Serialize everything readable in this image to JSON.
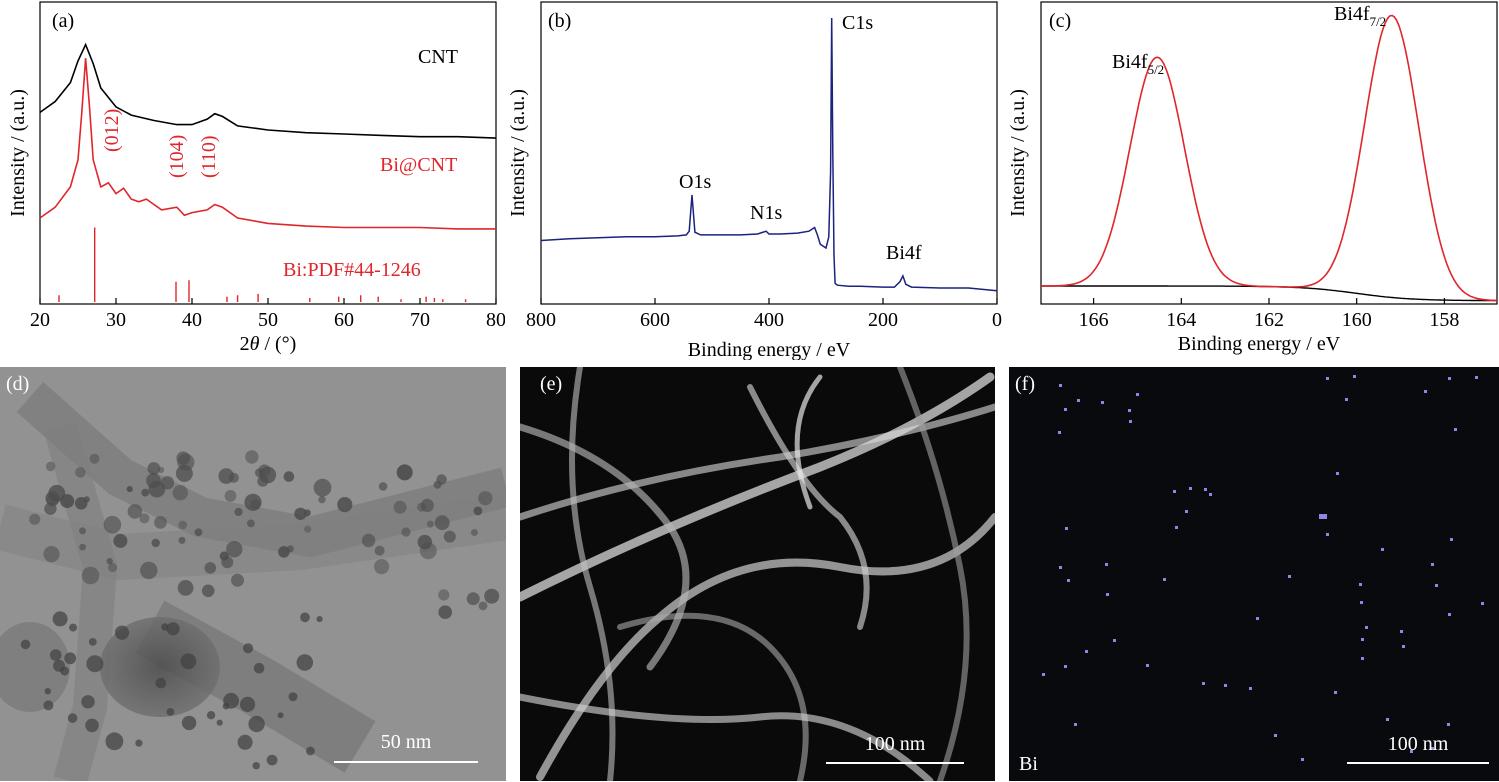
{
  "chart_data": [
    {
      "type": "line",
      "panel": "(a)",
      "xlabel_pre": "2",
      "xlabel_theta": "θ",
      "xlabel_post": " / (°)",
      "ylabel": "Intensity / (a.u.)",
      "xlim": [
        20,
        80
      ],
      "xticks": [
        "20",
        "30",
        "40",
        "50",
        "60",
        "70",
        "80"
      ],
      "series": [
        {
          "name": "CNT",
          "color": "#000000",
          "x": [
            20,
            22,
            24,
            25,
            26,
            27,
            28,
            30,
            32,
            35,
            38,
            40,
            42,
            43,
            44,
            46,
            50,
            55,
            60,
            65,
            70,
            75,
            80
          ],
          "y": [
            1.4,
            1.48,
            1.62,
            1.78,
            1.9,
            1.76,
            1.58,
            1.44,
            1.38,
            1.34,
            1.31,
            1.31,
            1.35,
            1.39,
            1.37,
            1.3,
            1.27,
            1.25,
            1.24,
            1.23,
            1.22,
            1.22,
            1.21
          ]
        },
        {
          "name": "Bi@CNT",
          "color": "#e0262b",
          "x": [
            20,
            22,
            24,
            25,
            25.5,
            26,
            26.5,
            27,
            28,
            29,
            30,
            31,
            32,
            33,
            34,
            36,
            38,
            39,
            40,
            42,
            43,
            44,
            46,
            50,
            55,
            60,
            65,
            70,
            75,
            80
          ],
          "y": [
            0.62,
            0.7,
            0.85,
            1.05,
            1.4,
            1.8,
            1.45,
            1.05,
            0.85,
            0.88,
            0.8,
            0.84,
            0.76,
            0.74,
            0.76,
            0.68,
            0.7,
            0.64,
            0.66,
            0.68,
            0.72,
            0.7,
            0.62,
            0.58,
            0.56,
            0.55,
            0.55,
            0.55,
            0.54,
            0.54
          ]
        }
      ],
      "reference": {
        "name": "Bi:PDF#44-1246",
        "color": "#e0262b",
        "x": [
          22.5,
          27.2,
          37.9,
          39.6,
          44.6,
          46.0,
          48.7,
          55.5,
          59.3,
          62.2,
          64.5,
          67.5,
          70.8,
          71.9,
          73.0,
          76.0
        ],
        "y": [
          0.05,
          0.55,
          0.15,
          0.16,
          0.04,
          0.05,
          0.06,
          0.03,
          0.04,
          0.05,
          0.04,
          0.02,
          0.04,
          0.03,
          0.02,
          0.02
        ]
      },
      "annotations": [
        "(012)",
        "(104)",
        "(110)"
      ],
      "ylim": [
        0,
        2.2
      ]
    },
    {
      "type": "line",
      "panel": "(b)",
      "xlabel": "Binding energy / eV",
      "ylabel": "Intensity / (a.u.)",
      "xlim": [
        800,
        0
      ],
      "xticks": [
        "800",
        "600",
        "400",
        "200",
        "0"
      ],
      "series": [
        {
          "name": "",
          "color": "#1a237e",
          "x": [
            800,
            750,
            700,
            650,
            600,
            560,
            545,
            540,
            535,
            530,
            520,
            500,
            450,
            420,
            405,
            400,
            380,
            350,
            330,
            320,
            315,
            310,
            300,
            295,
            292,
            290,
            288,
            286,
            284,
            280,
            260,
            240,
            200,
            180,
            170,
            165,
            160,
            150,
            100,
            50,
            0
          ],
          "y": [
            0.66,
            0.68,
            0.69,
            0.7,
            0.7,
            0.71,
            0.72,
            0.76,
            1.15,
            0.75,
            0.72,
            0.72,
            0.72,
            0.73,
            0.76,
            0.73,
            0.73,
            0.74,
            0.76,
            0.8,
            0.72,
            0.62,
            0.58,
            0.7,
            1.4,
            3.05,
            1.6,
            0.5,
            0.2,
            0.18,
            0.17,
            0.17,
            0.16,
            0.16,
            0.22,
            0.28,
            0.19,
            0.16,
            0.15,
            0.15,
            0.12
          ]
        }
      ],
      "annotations": [
        "C1s",
        "O1s",
        "N1s",
        "Bi4f"
      ],
      "ylim": [
        0,
        3.2
      ]
    },
    {
      "type": "line",
      "panel": "(c)",
      "xlabel": "Binding energy / eV",
      "ylabel": "Intensity / (a.u.)",
      "xlim": [
        167.2,
        156.8
      ],
      "xticks": [
        "166",
        "164",
        "162",
        "160",
        "158"
      ],
      "series": [
        {
          "name": "",
          "color": "#e0262b",
          "peaks": [
            {
              "center": 164.55,
              "height": 0.86,
              "sigma": 0.62
            },
            {
              "center": 159.2,
              "height": 1.06,
              "sigma": 0.62
            }
          ]
        },
        {
          "name": "",
          "color": "#000000",
          "background": true
        }
      ],
      "annotations": [
        "Bi4f",
        "5/2",
        "7/2"
      ],
      "ylim": [
        0,
        1.12
      ]
    }
  ],
  "panels": {
    "a": {
      "label": "(a)",
      "cnt": "CNT",
      "bicnt": "Bi@CNT",
      "ref": "Bi:PDF#44-1246",
      "h012": "(012)",
      "h104": "(104)",
      "h110": "(110)"
    },
    "b": {
      "label": "(b)",
      "c1s": "C1s",
      "o1s": "O1s",
      "n1s": "N1s",
      "bi4f": "Bi4f"
    },
    "c": {
      "label": "(c)",
      "bi": "Bi4f",
      "s52": "5/2",
      "s72": "7/2"
    },
    "d": {
      "label": "(d)",
      "scale": "50 nm"
    },
    "e": {
      "label": "(e)",
      "scale": "100 nm"
    },
    "f": {
      "label": "(f)",
      "scale": "100 nm",
      "element": "Bi"
    }
  }
}
